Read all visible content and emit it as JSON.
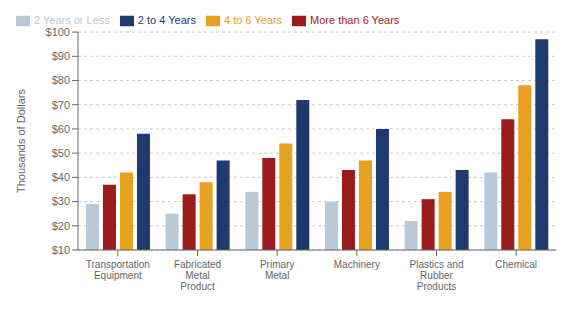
{
  "chart_data": {
    "type": "bar",
    "categories": [
      "Transportation\nEquipment",
      "Fabricated\nMetal\nProduct",
      "Primary\nMetal",
      "Machinery",
      "Plastics and\nRubber\nProducts",
      "Chemical"
    ],
    "series": [
      {
        "name": "2 Years or Less",
        "color": "#b8c9d9",
        "values": [
          29,
          25,
          34,
          30,
          22,
          42
        ]
      },
      {
        "name": "More than 6 Years",
        "color": "#9b1c1c",
        "values": [
          37,
          33,
          48,
          43,
          31,
          64
        ]
      },
      {
        "name": "4 to 6 Years",
        "color": "#e8a020",
        "values": [
          42,
          38,
          54,
          47,
          34,
          78
        ]
      },
      {
        "name": "2 to 4 Years",
        "color": "#1e3a6e",
        "values": [
          58,
          47,
          72,
          60,
          43,
          97
        ]
      }
    ],
    "ylabel": "Thousands of Dollars",
    "ylim": [
      10,
      100
    ],
    "yticks": [
      {
        "value": 10,
        "label": "$10"
      },
      {
        "value": 20,
        "label": "$20"
      },
      {
        "value": 30,
        "label": "$30"
      },
      {
        "value": 40,
        "label": "$40"
      },
      {
        "value": 50,
        "label": "$50"
      },
      {
        "value": 60,
        "label": "$60"
      },
      {
        "value": 70,
        "label": "$70"
      },
      {
        "value": 80,
        "label": "$80"
      },
      {
        "value": 90,
        "label": "$90"
      },
      {
        "value": 100,
        "label": "$100"
      }
    ],
    "grid": true,
    "legend": "upper left"
  }
}
